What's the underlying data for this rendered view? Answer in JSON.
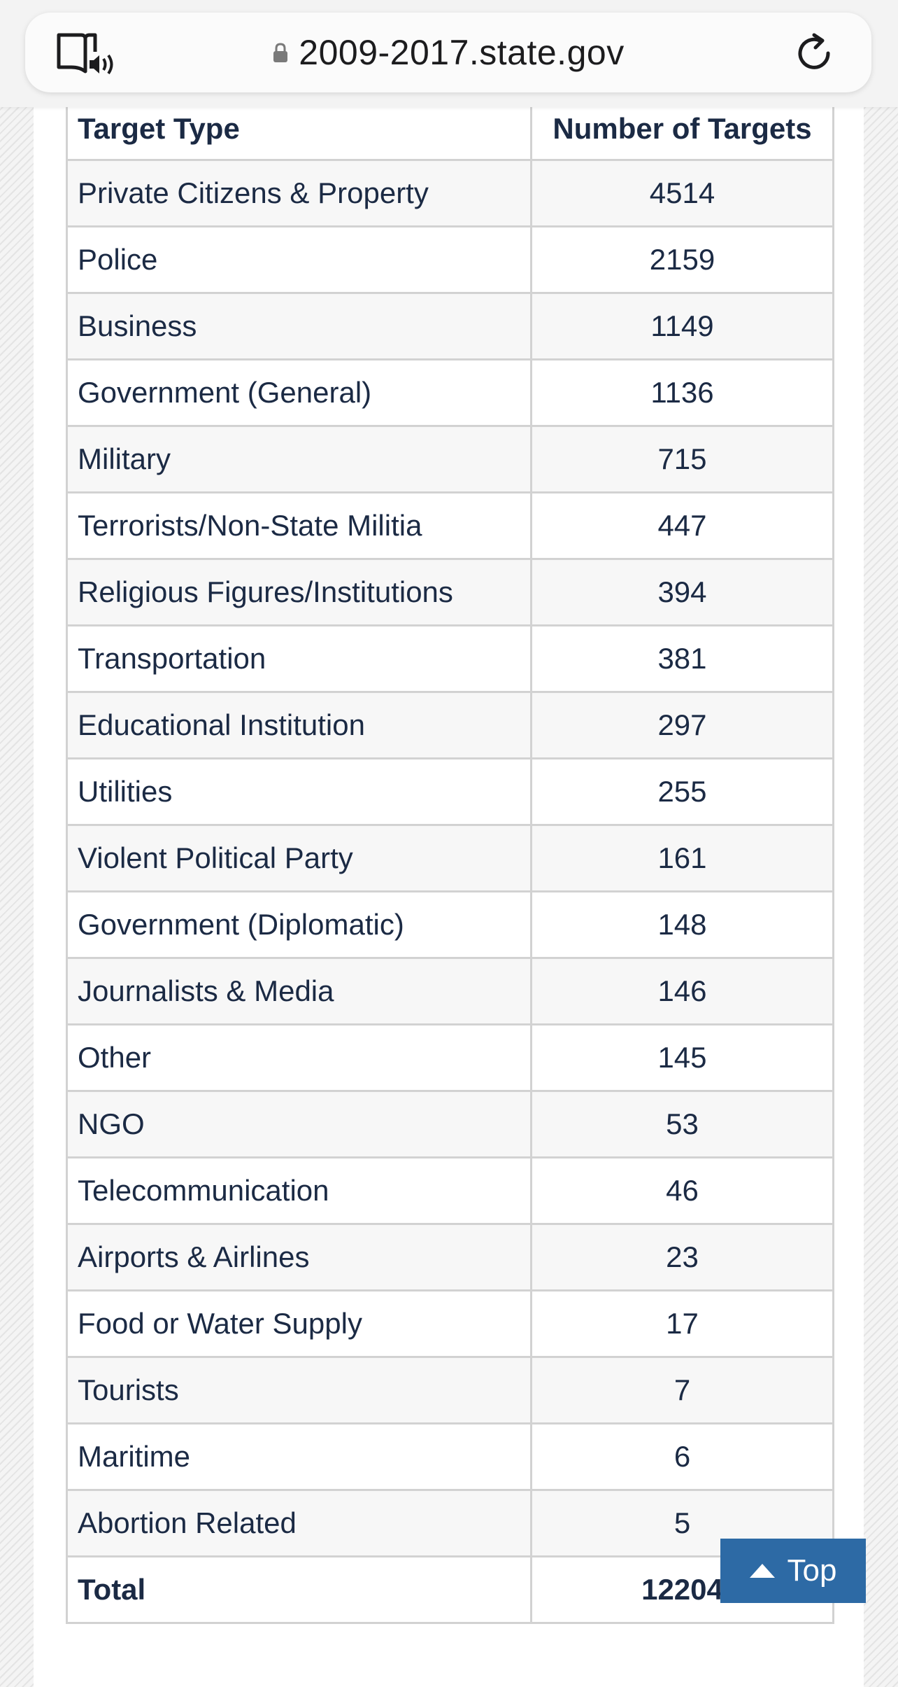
{
  "browser": {
    "url": "2009-2017.state.gov",
    "reader_icon": "reader-mode-audio-icon",
    "lock_icon": "lock-icon",
    "reload_icon": "reload-icon"
  },
  "table": {
    "headers": [
      "Target Type",
      "Number of Targets"
    ],
    "rows": [
      {
        "type": "Private Citizens & Property",
        "count": "4514"
      },
      {
        "type": "Police",
        "count": "2159"
      },
      {
        "type": "Business",
        "count": "1149"
      },
      {
        "type": "Government (General)",
        "count": "1136"
      },
      {
        "type": "Military",
        "count": "715"
      },
      {
        "type": "Terrorists/Non-State Militia",
        "count": "447"
      },
      {
        "type": "Religious Figures/Institutions",
        "count": "394"
      },
      {
        "type": "Transportation",
        "count": "381"
      },
      {
        "type": "Educational Institution",
        "count": "297"
      },
      {
        "type": "Utilities",
        "count": "255"
      },
      {
        "type": "Violent Political Party",
        "count": "161"
      },
      {
        "type": "Government (Diplomatic)",
        "count": "148"
      },
      {
        "type": "Journalists & Media",
        "count": "146"
      },
      {
        "type": "Other",
        "count": "145"
      },
      {
        "type": "NGO",
        "count": "53"
      },
      {
        "type": "Telecommunication",
        "count": "46"
      },
      {
        "type": "Airports & Airlines",
        "count": "23"
      },
      {
        "type": "Food or Water Supply",
        "count": "17"
      },
      {
        "type": "Tourists",
        "count": "7"
      },
      {
        "type": "Maritime",
        "count": "6"
      },
      {
        "type": "Abortion Related",
        "count": "5"
      }
    ],
    "total": {
      "label": "Total",
      "count": "12204"
    }
  },
  "top_button": {
    "label": "Top",
    "icon": "triangle-up-icon"
  },
  "colors": {
    "accent": "#2d6aa5",
    "text": "#1b2a44",
    "border": "#d2d2d2"
  }
}
